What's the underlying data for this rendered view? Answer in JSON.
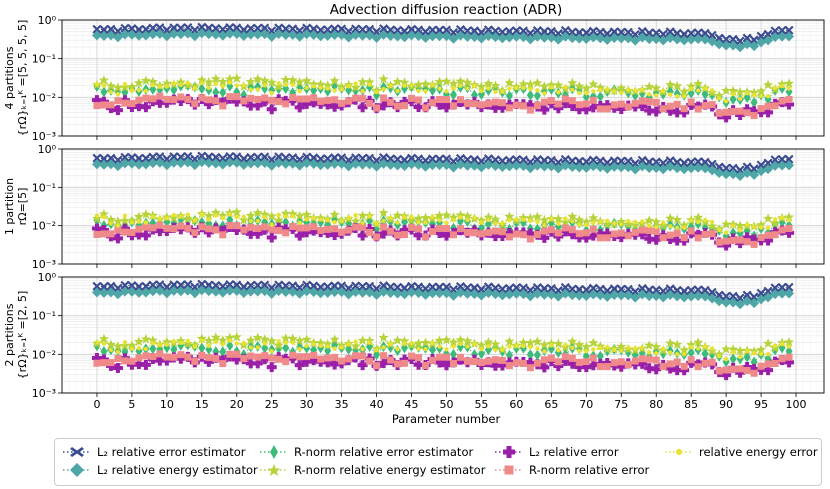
{
  "chart_data": {
    "type": "scatter",
    "title": "Advection diffusion reaction (ADR)",
    "xlabel": "Parameter number",
    "x_ticks": [
      0,
      5,
      10,
      15,
      20,
      25,
      30,
      35,
      40,
      45,
      50,
      55,
      60,
      65,
      70,
      75,
      80,
      85,
      90,
      95,
      100
    ],
    "xlim": [
      -5,
      104
    ],
    "yscale": "log",
    "ylim": [
      0.001,
      1
    ],
    "y_tick_labels": [
      "10⁻³",
      "10⁻²",
      "10⁻¹",
      "10⁰"
    ],
    "grid": true,
    "legend_position": "bottom",
    "legend": [
      {
        "key": "l2_err_est",
        "label": "L₂ relative error estimator",
        "color": "#3b4b8f",
        "marker": "X",
        "line": "dotted"
      },
      {
        "key": "l2_en_est",
        "label": "L₂ relative energy estimator",
        "color": "#4ea6a6",
        "marker": "D",
        "line": "dotted"
      },
      {
        "key": "r_err_est",
        "label": "R-norm relative error estimator",
        "color": "#3dbb7a",
        "marker": "d",
        "line": "dotted"
      },
      {
        "key": "r_en_est",
        "label": "R-norm relative energy estimator",
        "color": "#b6d33a",
        "marker": "*",
        "line": "dotted"
      },
      {
        "key": "l2_err",
        "label": "L₂ relative error",
        "color": "#9a1fa8",
        "marker": "P",
        "line": "dotted"
      },
      {
        "key": "r_err",
        "label": "R-norm relative error",
        "color": "#f08a8a",
        "marker": "s",
        "line": "dotted"
      },
      {
        "key": "en_err",
        "label": "relative energy error",
        "color": "#e8e233",
        "marker": "p",
        "line": "dotted"
      }
    ],
    "panels": [
      {
        "ylabel_line1": "4 partitions",
        "ylabel_line2": "{rΩ}ₖ₌₁ᴷ =[5, 5, 5, 5]",
        "levels": {
          "l2_err_est": 0.55,
          "l2_en_est": 0.38,
          "r_err_est": 0.015,
          "r_en_est": 0.022,
          "l2_err": 0.0065,
          "r_err": 0.0075,
          "en_err": 0.017
        }
      },
      {
        "ylabel_line1": "1 partition",
        "ylabel_line2": "rΩ=[5]",
        "levels": {
          "l2_err_est": 0.55,
          "l2_en_est": 0.38,
          "r_err_est": 0.011,
          "r_en_est": 0.016,
          "l2_err": 0.0065,
          "r_err": 0.0072,
          "en_err": 0.014
        }
      },
      {
        "ylabel_line1": "2 partitions",
        "ylabel_line2": "{rΩ}ₖ₌₁ᴷ =[2, 5]",
        "levels": {
          "l2_err_est": 0.55,
          "l2_en_est": 0.38,
          "r_err_est": 0.013,
          "r_en_est": 0.02,
          "l2_err": 0.0062,
          "r_err": 0.0072,
          "en_err": 0.016
        }
      }
    ],
    "shape_note": "Values over parameter number 0–99 follow the same shape: slight rise around 10–15, slow decline to ~90, dip at 91–93, rise to 99."
  }
}
